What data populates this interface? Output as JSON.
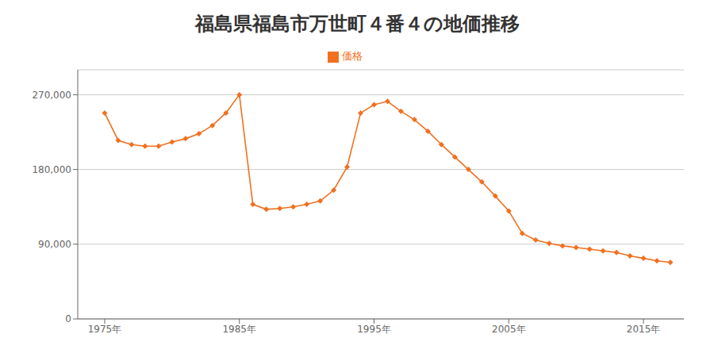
{
  "chart_data": {
    "type": "line",
    "title": "福島県福島市万世町４番４の地価推移",
    "x": [
      1975,
      1976,
      1977,
      1978,
      1979,
      1980,
      1981,
      1982,
      1983,
      1984,
      1985,
      1986,
      1987,
      1988,
      1989,
      1990,
      1991,
      1992,
      1993,
      1994,
      1995,
      1996,
      1997,
      1998,
      1999,
      2000,
      2001,
      2002,
      2003,
      2004,
      2005,
      2006,
      2007,
      2008,
      2009,
      2010,
      2011,
      2012,
      2013,
      2014,
      2015,
      2016,
      2017
    ],
    "series": [
      {
        "name": "価格",
        "color": "#f07020",
        "marker": "diamond",
        "values": [
          248000,
          215000,
          210000,
          208000,
          208000,
          213000,
          217000,
          223000,
          233000,
          248000,
          270000,
          138000,
          132000,
          133000,
          135000,
          138000,
          142000,
          155000,
          183000,
          248000,
          258000,
          262000,
          250000,
          240000,
          226000,
          210000,
          195000,
          180000,
          165000,
          148000,
          130000,
          103000,
          95000,
          91000,
          88000,
          86000,
          84000,
          82000,
          80000,
          76000,
          73000,
          70000,
          68000
        ]
      }
    ],
    "xlim": [
      1973,
      2018
    ],
    "xticks": [
      {
        "value": 1975,
        "label": "1975年"
      },
      {
        "value": 1985,
        "label": "1985年"
      },
      {
        "value": 1995,
        "label": "1995年"
      },
      {
        "value": 2005,
        "label": "2005年"
      },
      {
        "value": 2015,
        "label": "2015年"
      }
    ],
    "ylim": [
      0,
      300000
    ],
    "yticks": [
      0,
      {
        "value": 90000,
        "label": "90,000"
      },
      {
        "value": 180000,
        "label": "180,000"
      },
      {
        "value": 270000,
        "label": "270,000"
      }
    ],
    "grid": true,
    "legend": "top"
  }
}
